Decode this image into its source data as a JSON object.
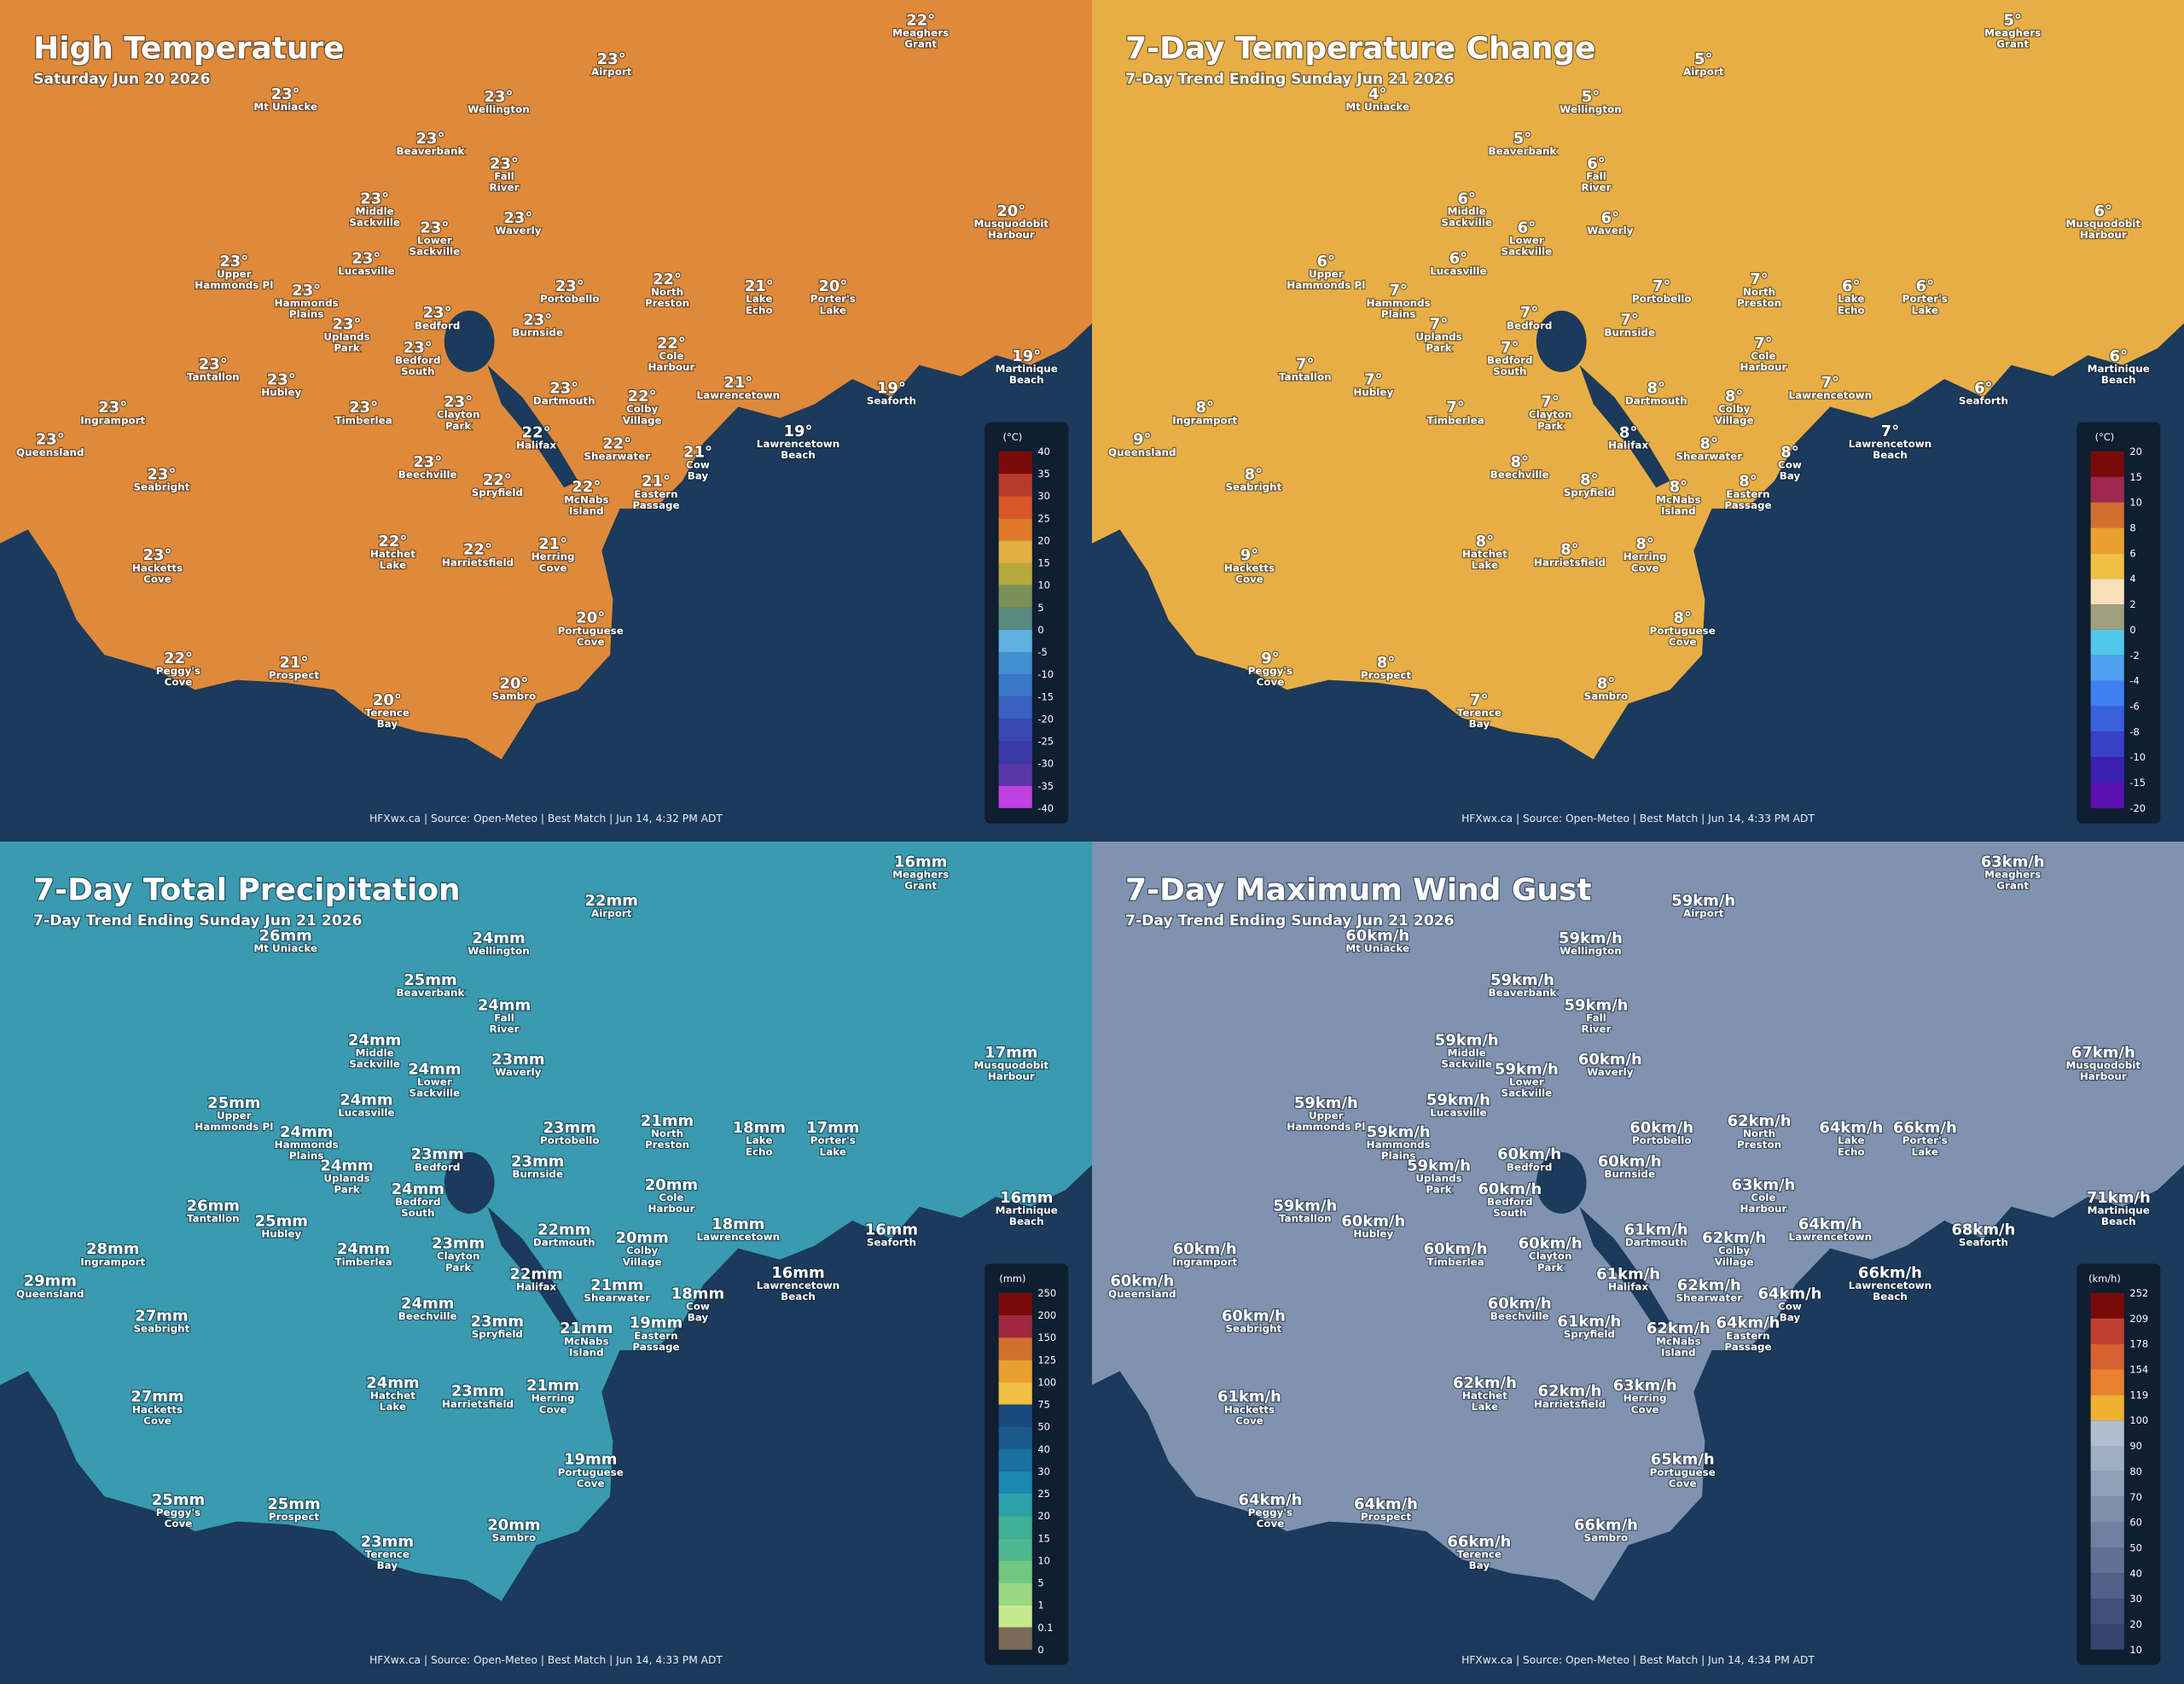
{
  "places": [
    [
      "Meaghers",
      "Grant"
    ],
    [
      "Airport"
    ],
    [
      "Mt Uniacke"
    ],
    [
      "Wellington"
    ],
    [
      "Beaverbank"
    ],
    [
      "Fall",
      "River"
    ],
    [
      "Middle",
      "Sackville"
    ],
    [
      "Lower",
      "Sackville"
    ],
    [
      "Waverly"
    ],
    [
      "Musquodobit",
      "Harbour"
    ],
    [
      "Upper",
      "Hammonds Pl"
    ],
    [
      "Lucasville"
    ],
    [
      "Hammonds",
      "Plains"
    ],
    [
      "Portobello"
    ],
    [
      "North",
      "Preston"
    ],
    [
      "Lake",
      "Echo"
    ],
    [
      "Porter's",
      "Lake"
    ],
    [
      "Bedford"
    ],
    [
      "Uplands",
      "Park"
    ],
    [
      "Burnside"
    ],
    [
      "Cole",
      "Harbour"
    ],
    [
      "Bedford",
      "South"
    ],
    [
      "Martinique",
      "Beach"
    ],
    [
      "Tantallon"
    ],
    [
      "Hubley"
    ],
    [
      "Dartmouth"
    ],
    [
      "Colby",
      "Village"
    ],
    [
      "Lawrencetown"
    ],
    [
      "Seaforth"
    ],
    [
      "Ingramport"
    ],
    [
      "Timberlea"
    ],
    [
      "Clayton",
      "Park"
    ],
    [
      "Queensland"
    ],
    [
      "Halifax"
    ],
    [
      "Shearwater"
    ],
    [
      "Lawrencetown",
      "Beach"
    ],
    [
      "Cow",
      "Bay"
    ],
    [
      "Beechville"
    ],
    [
      "Seabright"
    ],
    [
      "Spryfield"
    ],
    [
      "McNabs",
      "Island"
    ],
    [
      "Eastern",
      "Passage"
    ],
    [
      "Hatchet",
      "Lake"
    ],
    [
      "Harrietsfield"
    ],
    [
      "Herring",
      "Cove"
    ],
    [
      "Hacketts",
      "Cove"
    ],
    [
      "Portuguese",
      "Cove"
    ],
    [
      "Peggy's",
      "Cove"
    ],
    [
      "Prospect"
    ],
    [
      "Terence",
      "Bay"
    ],
    [
      "Sambro"
    ]
  ],
  "panels": [
    {
      "title": "High Temperature",
      "subtitle": "Saturday Jun 20 2026",
      "land_color": "#df8a3a",
      "values": [
        "22°",
        "23°",
        "23°",
        "23°",
        "23°",
        "23°",
        "23°",
        "23°",
        "23°",
        "20°",
        "23°",
        "23°",
        "23°",
        "23°",
        "22°",
        "21°",
        "20°",
        "23°",
        "23°",
        "23°",
        "22°",
        "23°",
        "19°",
        "23°",
        "23°",
        "23°",
        "22°",
        "21°",
        "19°",
        "23°",
        "23°",
        "23°",
        "23°",
        "22°",
        "22°",
        "19°",
        "21°",
        "23°",
        "23°",
        "22°",
        "22°",
        "21°",
        "22°",
        "22°",
        "21°",
        "23°",
        "20°",
        "22°",
        "21°",
        "20°",
        "20°"
      ],
      "legend_unit": "(°C)",
      "legend_ticks": [
        "40",
        "35",
        "30",
        "25",
        "20",
        "15",
        "10",
        "5",
        "0",
        "-5",
        "-10",
        "-15",
        "-20",
        "-25",
        "-30",
        "-35",
        "-40"
      ],
      "legend_colors": [
        "#7a0a0a",
        "#b83a2a",
        "#d9562a",
        "#e07a2a",
        "#e0b040",
        "#b8a840",
        "#7a9058",
        "#5a8a80",
        "#60b0e0",
        "#4090d0",
        "#3a78c8",
        "#3a60c0",
        "#3a48b0",
        "#3a38a8",
        "#5a38a8",
        "#c040e0"
      ],
      "footer": "HFXwx.ca | Source: Open-Meteo | Best Match | Jun 14, 4:32 PM ADT"
    },
    {
      "title": "7-Day Temperature Change",
      "subtitle": "7-Day Trend Ending Sunday Jun 21 2026",
      "land_color": "#e8ae45",
      "values": [
        "5°",
        "5°",
        "4°",
        "5°",
        "5°",
        "6°",
        "6°",
        "6°",
        "6°",
        "6°",
        "6°",
        "6°",
        "7°",
        "7°",
        "7°",
        "6°",
        "6°",
        "7°",
        "7°",
        "7°",
        "7°",
        "7°",
        "6°",
        "7°",
        "7°",
        "8°",
        "8°",
        "7°",
        "6°",
        "8°",
        "7°",
        "7°",
        "9°",
        "8°",
        "8°",
        "7°",
        "8°",
        "8°",
        "8°",
        "8°",
        "8°",
        "8°",
        "8°",
        "8°",
        "8°",
        "9°",
        "8°",
        "9°",
        "8°",
        "7°",
        "8°"
      ],
      "legend_unit": "(°C)",
      "legend_ticks": [
        "20",
        "15",
        "10",
        "8",
        "6",
        "4",
        "2",
        "0",
        "-2",
        "-4",
        "-6",
        "-8",
        "-10",
        "-15",
        "-20"
      ],
      "legend_colors": [
        "#7a0a0a",
        "#a02850",
        "#d07030",
        "#e8a030",
        "#f0c040",
        "#f8e0b8",
        "#a0a080",
        "#50c8e8",
        "#50a0f0",
        "#4080f0",
        "#3a60e0",
        "#3a40c8",
        "#3a20b0",
        "#5a10b0"
      ],
      "footer": "HFXwx.ca | Source: Open-Meteo | Best Match | Jun 14, 4:33 PM ADT"
    },
    {
      "title": "7-Day Total Precipitation",
      "subtitle": "7-Day Trend Ending Sunday Jun 21 2026",
      "land_color": "#3a9ab0",
      "values": [
        "16mm",
        "22mm",
        "26mm",
        "24mm",
        "25mm",
        "24mm",
        "24mm",
        "24mm",
        "23mm",
        "17mm",
        "25mm",
        "24mm",
        "24mm",
        "23mm",
        "21mm",
        "18mm",
        "17mm",
        "23mm",
        "24mm",
        "23mm",
        "20mm",
        "24mm",
        "16mm",
        "26mm",
        "25mm",
        "22mm",
        "20mm",
        "18mm",
        "16mm",
        "28mm",
        "24mm",
        "23mm",
        "29mm",
        "22mm",
        "21mm",
        "16mm",
        "18mm",
        "24mm",
        "27mm",
        "23mm",
        "21mm",
        "19mm",
        "24mm",
        "23mm",
        "21mm",
        "27mm",
        "19mm",
        "25mm",
        "25mm",
        "23mm",
        "20mm"
      ],
      "legend_unit": "(mm)",
      "legend_ticks": [
        "250",
        "200",
        "150",
        "125",
        "100",
        "75",
        "50",
        "40",
        "30",
        "25",
        "20",
        "15",
        "10",
        "5",
        "1",
        "0.1",
        "0"
      ],
      "legend_colors": [
        "#7a0a0a",
        "#a02840",
        "#d07030",
        "#e8a030",
        "#f0c040",
        "#1a4a7a",
        "#1a5a8a",
        "#1a70a0",
        "#1a88b0",
        "#2aa0a8",
        "#40b098",
        "#50b890",
        "#70c880",
        "#98d880",
        "#c8e890",
        "#7a6a58"
      ],
      "footer": "HFXwx.ca | Source: Open-Meteo | Best Match | Jun 14, 4:33 PM ADT"
    },
    {
      "title": "7-Day Maximum Wind Gust",
      "subtitle": "7-Day Trend Ending Sunday Jun 21 2026",
      "land_color": "#7f93b0",
      "values": [
        "63km/h",
        "59km/h",
        "60km/h",
        "59km/h",
        "59km/h",
        "59km/h",
        "59km/h",
        "59km/h",
        "60km/h",
        "67km/h",
        "59km/h",
        "59km/h",
        "59km/h",
        "60km/h",
        "62km/h",
        "64km/h",
        "66km/h",
        "60km/h",
        "59km/h",
        "60km/h",
        "63km/h",
        "60km/h",
        "71km/h",
        "59km/h",
        "60km/h",
        "61km/h",
        "62km/h",
        "64km/h",
        "68km/h",
        "60km/h",
        "60km/h",
        "60km/h",
        "60km/h",
        "61km/h",
        "62km/h",
        "66km/h",
        "64km/h",
        "60km/h",
        "60km/h",
        "61km/h",
        "62km/h",
        "64km/h",
        "62km/h",
        "62km/h",
        "63km/h",
        "61km/h",
        "65km/h",
        "64km/h",
        "64km/h",
        "66km/h",
        "66km/h"
      ],
      "legend_unit": "(km/h)",
      "legend_ticks": [
        "252",
        "209",
        "178",
        "154",
        "119",
        "100",
        "90",
        "80",
        "70",
        "60",
        "50",
        "40",
        "30",
        "20",
        "10"
      ],
      "legend_colors": [
        "#7a0a0a",
        "#c04030",
        "#d86030",
        "#e88030",
        "#f0b030",
        "#b0bcd0",
        "#a0aec4",
        "#90a0b8",
        "#8090ac",
        "#7080a0",
        "#607094",
        "#506088",
        "#40507c",
        "#34446e"
      ],
      "footer": "HFXwx.ca | Source: Open-Meteo | Best Match | Jun 14, 4:34 PM ADT"
    }
  ]
}
